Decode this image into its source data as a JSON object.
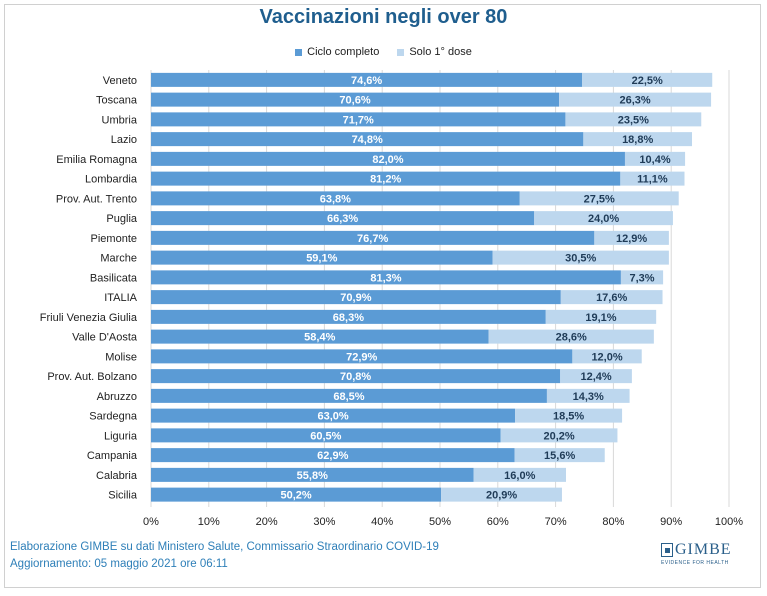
{
  "chart_data": {
    "type": "bar",
    "orientation": "horizontal",
    "stacked": true,
    "title": "Vaccinazioni negli over 80",
    "categories": [
      "Veneto",
      "Toscana",
      "Umbria",
      "Lazio",
      "Emilia Romagna",
      "Lombardia",
      "Prov. Aut. Trento",
      "Puglia",
      "Piemonte",
      "Marche",
      "Basilicata",
      "ITALIA",
      "Friuli Venezia Giulia",
      "Valle D'Aosta",
      "Molise",
      "Prov. Aut. Bolzano",
      "Abruzzo",
      "Sardegna",
      "Liguria",
      "Campania",
      "Calabria",
      "Sicilia"
    ],
    "series": [
      {
        "name": "Ciclo completo",
        "color": "#5b9bd5",
        "values": [
          74.6,
          70.6,
          71.7,
          74.8,
          82.0,
          81.2,
          63.8,
          66.3,
          76.7,
          59.1,
          81.3,
          70.9,
          68.3,
          58.4,
          72.9,
          70.8,
          68.5,
          63.0,
          60.5,
          62.9,
          55.8,
          50.2
        ],
        "labels": [
          "74,6%",
          "70,6%",
          "71,7%",
          "74,8%",
          "82,0%",
          "81,2%",
          "63,8%",
          "66,3%",
          "76,7%",
          "59,1%",
          "81,3%",
          "70,9%",
          "68,3%",
          "58,4%",
          "72,9%",
          "70,8%",
          "68,5%",
          "63,0%",
          "60,5%",
          "62,9%",
          "55,8%",
          "50,2%"
        ]
      },
      {
        "name": "Solo 1° dose",
        "color": "#bdd7ee",
        "values": [
          22.5,
          26.3,
          23.5,
          18.8,
          10.4,
          11.1,
          27.5,
          24.0,
          12.9,
          30.5,
          7.3,
          17.6,
          19.1,
          28.6,
          12.0,
          12.4,
          14.3,
          18.5,
          20.2,
          15.6,
          16.0,
          20.9
        ],
        "labels": [
          "22,5%",
          "26,3%",
          "23,5%",
          "18,8%",
          "10,4%",
          "11,1%",
          "27,5%",
          "24,0%",
          "12,9%",
          "30,5%",
          "7,3%",
          "17,6%",
          "19,1%",
          "28,6%",
          "12,0%",
          "12,4%",
          "14,3%",
          "18,5%",
          "20,2%",
          "15,6%",
          "16,0%",
          "20,9%"
        ]
      }
    ],
    "xlim": [
      0,
      100
    ],
    "xticks": [
      "0%",
      "10%",
      "20%",
      "30%",
      "40%",
      "50%",
      "60%",
      "70%",
      "80%",
      "90%",
      "100%"
    ],
    "grid": true,
    "legend_position": "top"
  },
  "footer": {
    "source": "Elaborazione GIMBE su dati Ministero Salute, Commissario Straordinario COVID-19",
    "updated": "Aggiornamento: 05 maggio 2021 ore 06:11"
  },
  "logo": {
    "name": "GIMBE",
    "tagline": "EVIDENCE FOR HEALTH"
  },
  "colors": {
    "title": "#1f5e8e",
    "footer": "#2e7fb8",
    "grid": "#d9d9d9"
  }
}
